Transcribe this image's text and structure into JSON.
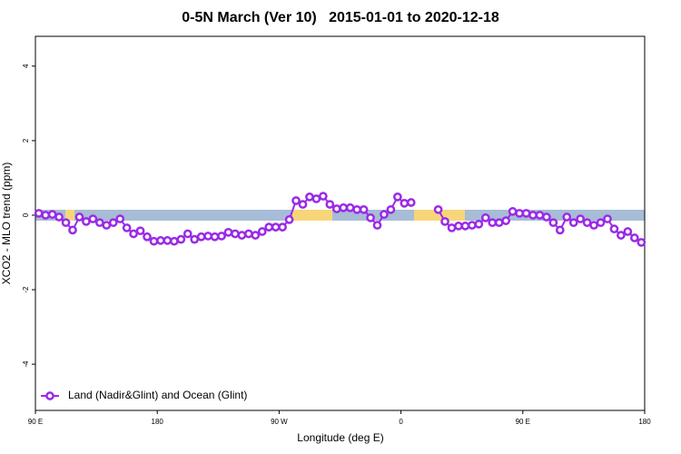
{
  "chart_data": {
    "type": "line",
    "title": "0-5N March (Ver 10)   2015-01-01 to 2020-12-18",
    "x_label": "Longitude (deg E)",
    "y_label": "XCO2 - MLO trend (ppm)",
    "xlim": [
      90,
      540
    ],
    "ylim": [
      -5.24,
      4.8
    ],
    "xticks": [
      {
        "value": 90,
        "label": "90 E"
      },
      {
        "value": 180,
        "label": "180"
      },
      {
        "value": 270,
        "label": "90 W"
      },
      {
        "value": 360,
        "label": "0"
      },
      {
        "value": 450,
        "label": "90 E"
      },
      {
        "value": 540,
        "label": "180"
      }
    ],
    "yticks": [
      4,
      2,
      0,
      -2,
      -4
    ],
    "legend": "bottom-left",
    "x": [
      92.5,
      97.5,
      102.5,
      107.5,
      112.5,
      117.5,
      122.5,
      127.5,
      132.5,
      137.5,
      142.5,
      147.5,
      152.5,
      157.5,
      162.5,
      167.5,
      172.5,
      177.5,
      182.5,
      187.5,
      192.5,
      197.5,
      202.5,
      207.5,
      212.5,
      217.5,
      222.5,
      227.5,
      232.5,
      237.5,
      242.5,
      247.5,
      252.5,
      257.5,
      262.5,
      267.5,
      272.5,
      277.5,
      282.5,
      287.5,
      292.5,
      297.5,
      302.5,
      307.5,
      312.5,
      317.5,
      322.5,
      327.5,
      332.5,
      337.5,
      342.5,
      347.5,
      352.5,
      357.5,
      362.5,
      367.5,
      372.5,
      377.5,
      382.5,
      387.5,
      392.5,
      397.5,
      402.5,
      407.5,
      412.5,
      417.5,
      422.5,
      427.5,
      432.5,
      437.5,
      442.5,
      447.5,
      452.5,
      457.5,
      462.5,
      467.5,
      472.5,
      477.5,
      482.5,
      487.5,
      492.5,
      497.5,
      502.5,
      507.5,
      512.5,
      517.5,
      522.5,
      527.5,
      532.5,
      537.5
    ],
    "series": [
      {
        "name": "Land (Nadir&Glint) and Ocean (Glint)",
        "color": "#9a2ae6",
        "values": [
          0.05,
          0.0,
          0.02,
          -0.05,
          -0.2,
          -0.4,
          -0.05,
          -0.17,
          -0.1,
          -0.2,
          -0.27,
          -0.2,
          -0.1,
          -0.34,
          -0.5,
          -0.42,
          -0.58,
          -0.7,
          -0.68,
          -0.68,
          -0.7,
          -0.65,
          -0.5,
          -0.65,
          -0.58,
          -0.56,
          -0.58,
          -0.56,
          -0.46,
          -0.5,
          -0.54,
          -0.5,
          -0.54,
          -0.44,
          -0.32,
          -0.32,
          -0.32,
          -0.12,
          0.39,
          0.29,
          0.49,
          0.44,
          0.51,
          0.29,
          0.17,
          0.2,
          0.2,
          0.15,
          0.15,
          -0.07,
          -0.27,
          0.02,
          0.15,
          0.49,
          0.32,
          0.34,
          null,
          null,
          null,
          0.15,
          -0.17,
          -0.34,
          -0.29,
          -0.29,
          -0.27,
          -0.24,
          -0.07,
          -0.2,
          -0.2,
          -0.15,
          0.1,
          0.05,
          0.05,
          0.0,
          0.0,
          -0.05,
          -0.2,
          -0.4,
          -0.05,
          -0.2,
          -0.1,
          -0.2,
          -0.27,
          -0.2,
          -0.1,
          -0.37,
          -0.54,
          -0.44,
          -0.61,
          -0.73
        ]
      }
    ]
  }
}
